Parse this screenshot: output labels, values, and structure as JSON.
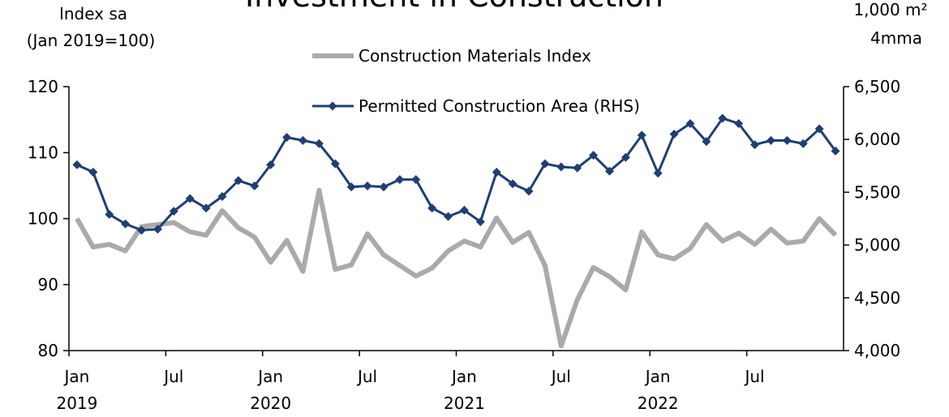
{
  "chart_data": {
    "type": "line",
    "title": "Investment in Construction",
    "y_label": [
      "Index sa",
      "(Jan 2019=100)"
    ],
    "y2_label": [
      "1,000 m²",
      "4mma"
    ],
    "categories": [
      "Jan\n2019",
      null,
      null,
      null,
      null,
      null,
      "Jul",
      null,
      null,
      null,
      null,
      null,
      "Jan\n2020",
      null,
      null,
      null,
      null,
      null,
      "Jul",
      null,
      null,
      null,
      null,
      null,
      "Jan\n2021",
      null,
      null,
      null,
      null,
      null,
      "Jul",
      null,
      null,
      null,
      null,
      null,
      "Jan\n2022",
      null,
      null,
      null,
      null,
      null,
      "Jul",
      null,
      null,
      null,
      null,
      null
    ],
    "series": [
      {
        "name": "Construction Materials Index",
        "color": "#aaaaaa",
        "axis": "y",
        "values": [
          100,
          95.7,
          96.1,
          95.1,
          98.8,
          99.1,
          99.4,
          98.0,
          97.5,
          101.2,
          98.6,
          97.2,
          93.4,
          96.7,
          92.0,
          104.3,
          92.3,
          93.0,
          97.7,
          94.5,
          92.9,
          91.3,
          92.5,
          95.1,
          96.6,
          95.7,
          100.1,
          96.4,
          97.9,
          92.9,
          80.7,
          87.7,
          92.6,
          91.2,
          89.2,
          98.0,
          94.5,
          93.9,
          95.5,
          99.1,
          96.6,
          97.8,
          96.1,
          98.4,
          96.3,
          96.6,
          100.0,
          97.5
        ]
      },
      {
        "name": "Permitted Construction Area (RHS)",
        "color": "#1f3f73",
        "axis": "y2",
        "marker": "diamond",
        "values": [
          5760,
          5690,
          5290,
          5200,
          5140,
          5150,
          5320,
          5440,
          5350,
          5460,
          5610,
          5560,
          5760,
          6020,
          5990,
          5960,
          5770,
          5550,
          5560,
          5550,
          5620,
          5620,
          5350,
          5270,
          5330,
          5220,
          5690,
          5580,
          5510,
          5770,
          5740,
          5730,
          5850,
          5700,
          5830,
          6040,
          5680,
          6050,
          6150,
          5980,
          6200,
          6150,
          5950,
          5990,
          5990,
          5960,
          6100,
          5890
        ]
      }
    ],
    "ylim": [
      80,
      120
    ],
    "yticks": [
      80,
      90,
      100,
      110,
      120
    ],
    "y2lim": [
      4000,
      6500
    ],
    "y2ticks": [
      {
        "value": 4000,
        "label": "4,000"
      },
      {
        "value": 4500,
        "label": "4,500"
      },
      {
        "value": 5000,
        "label": "5,000"
      },
      {
        "value": 5500,
        "label": "5,500"
      },
      {
        "value": 6000,
        "label": "6,000"
      },
      {
        "value": 6500,
        "label": "6,500"
      }
    ],
    "grid": false
  }
}
